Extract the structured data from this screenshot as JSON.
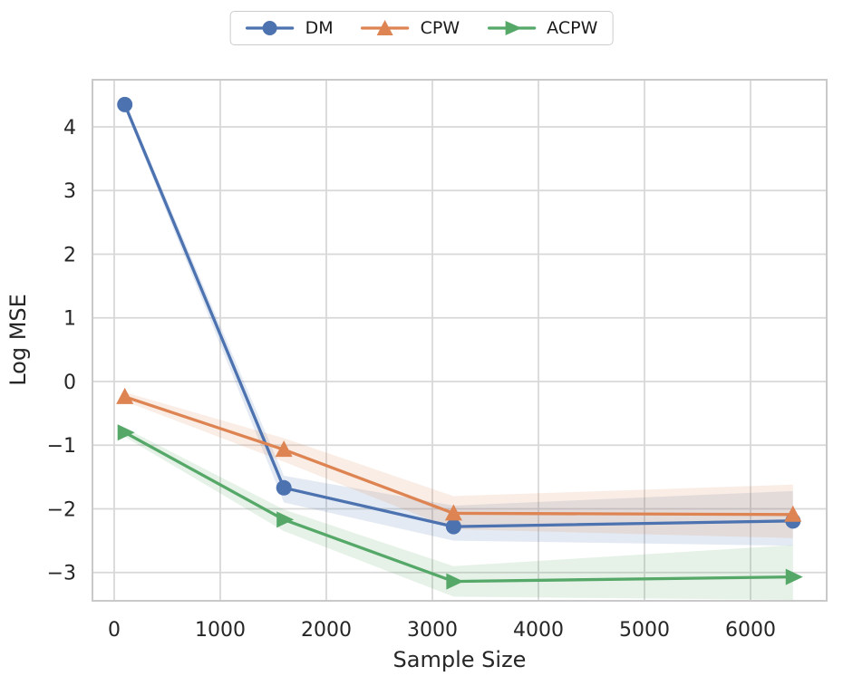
{
  "figure": {
    "background": "#ffffff"
  },
  "legend": {
    "position": "top-center-outside",
    "items": [
      {
        "label": "DM",
        "color": "#4C72B0",
        "marker": "circle"
      },
      {
        "label": "CPW",
        "color": "#DD8452",
        "marker": "triangle-up"
      },
      {
        "label": "ACPW",
        "color": "#55A868",
        "marker": "triangle-right"
      }
    ]
  },
  "chart_data": {
    "type": "line",
    "title": "",
    "xlabel": "Sample Size",
    "ylabel": "Log MSE",
    "x": [
      100,
      1600,
      3200,
      6400
    ],
    "series": [
      {
        "name": "DM",
        "color": "#4C72B0",
        "marker": "circle",
        "values": [
          4.35,
          -1.67,
          -2.28,
          -2.19
        ],
        "band_lower": [
          4.29,
          -1.9,
          -2.5,
          -2.58
        ],
        "band_upper": [
          4.41,
          -1.48,
          -1.95,
          -1.72
        ]
      },
      {
        "name": "CPW",
        "color": "#DD8452",
        "marker": "triangle-up",
        "values": [
          -0.24,
          -1.07,
          -2.07,
          -2.09
        ],
        "band_lower": [
          -0.31,
          -1.26,
          -2.32,
          -2.46
        ],
        "band_upper": [
          -0.17,
          -0.89,
          -1.8,
          -1.62
        ]
      },
      {
        "name": "ACPW",
        "color": "#55A868",
        "marker": "triangle-right",
        "values": [
          -0.8,
          -2.17,
          -3.14,
          -3.07
        ],
        "band_lower": [
          -0.87,
          -2.35,
          -3.38,
          -3.43
        ],
        "band_upper": [
          -0.73,
          -2.01,
          -2.9,
          -2.57
        ]
      }
    ],
    "xticks": [
      0,
      1000,
      2000,
      3000,
      4000,
      5000,
      6000
    ],
    "yticks": [
      -3,
      -2,
      -1,
      0,
      1,
      2,
      3,
      4
    ],
    "xlim": [
      -205,
      6718
    ],
    "ylim": [
      -3.445,
      4.74
    ],
    "grid": true,
    "band_alpha": 0.15,
    "legend_position": "top-center-outside"
  },
  "style_colors": {
    "grid": "#d8d8d8",
    "spine": "#c9c9c9",
    "text": "#262626"
  }
}
